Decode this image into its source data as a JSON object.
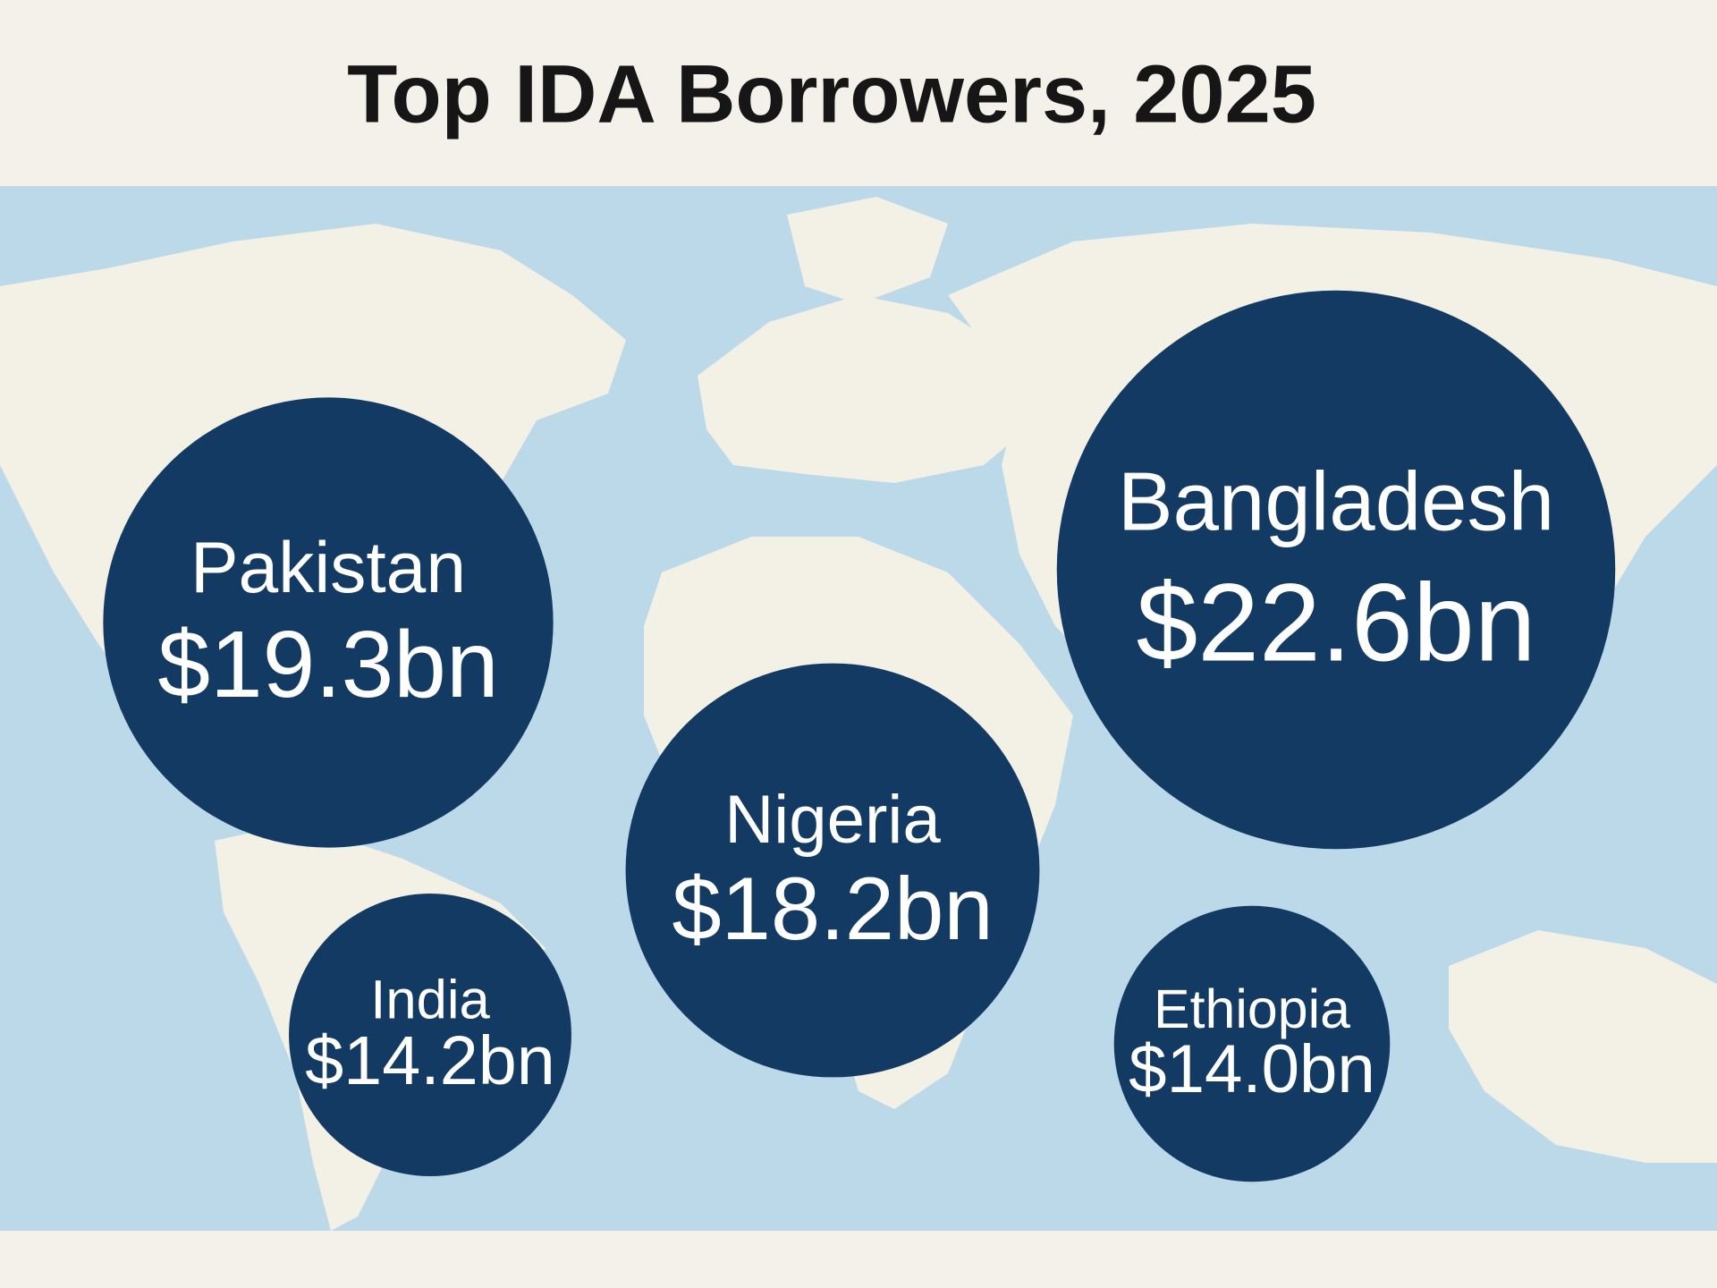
{
  "chart_data": {
    "type": "bubble",
    "title": "Top IDA Borrowers, 2025",
    "categories": [
      "Pakistan",
      "Bangladesh",
      "Nigeria",
      "India",
      "Ethiopia"
    ],
    "values": [
      19.3,
      22.6,
      18.2,
      14.2,
      14.0
    ],
    "value_labels": [
      "$19.3bn",
      "$22.6bn",
      "$18.2bn",
      "$14.2bn",
      "$14.0bn"
    ],
    "color": "#133a63"
  }
}
